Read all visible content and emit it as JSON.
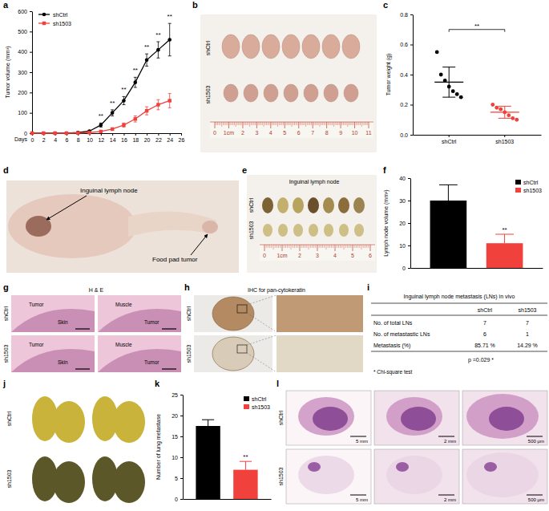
{
  "chart_data": [
    {
      "type": "line",
      "x": [
        0,
        2,
        4,
        6,
        8,
        10,
        12,
        14,
        16,
        18,
        20,
        22,
        24
      ],
      "series": [
        {
          "name": "shCtrl",
          "color": "#000000",
          "marker": "circle",
          "values": [
            0,
            0,
            0,
            0,
            3,
            10,
            40,
            100,
            160,
            250,
            360,
            410,
            460
          ],
          "errors": [
            0,
            0,
            0,
            0,
            2,
            4,
            10,
            15,
            20,
            25,
            30,
            40,
            80
          ]
        },
        {
          "name": "sh1503",
          "color": "#f0413c",
          "marker": "square",
          "values": [
            0,
            0,
            0,
            0,
            1,
            3,
            8,
            20,
            40,
            70,
            110,
            140,
            160
          ],
          "errors": [
            0,
            0,
            0,
            0,
            1,
            2,
            4,
            6,
            10,
            15,
            20,
            25,
            35
          ]
        }
      ],
      "xlim": [
        0,
        26
      ],
      "xticks": [
        0,
        2,
        4,
        6,
        8,
        10,
        12,
        14,
        16,
        18,
        20,
        22,
        24,
        26
      ],
      "ylim": [
        0,
        600
      ],
      "yticks": [
        0,
        100,
        200,
        300,
        400,
        500,
        600
      ],
      "x_label": "Days",
      "y_label": "Tumor volume (mm³)",
      "legend": "top-left",
      "annotations": [
        {
          "x": 12,
          "y": 75,
          "text": "**"
        },
        {
          "x": 14,
          "y": 140,
          "text": "**"
        },
        {
          "x": 16,
          "y": 205,
          "text": "**"
        },
        {
          "x": 18,
          "y": 300,
          "text": "**"
        },
        {
          "x": 20,
          "y": 415,
          "text": "**"
        },
        {
          "x": 22,
          "y": 475,
          "text": "**"
        },
        {
          "x": 24,
          "y": 565,
          "text": "**"
        }
      ]
    },
    {
      "type": "dot",
      "categories": [
        "shCtrl",
        "sh1503"
      ],
      "colors": [
        "#000000",
        "#f0413c"
      ],
      "points": [
        [
          0.55,
          0.4,
          0.36,
          0.32,
          0.29,
          0.27,
          0.25
        ],
        [
          0.2,
          0.18,
          0.17,
          0.15,
          0.13,
          0.11,
          0.1
        ]
      ],
      "means": [
        0.35,
        0.15
      ],
      "sd": [
        0.1,
        0.04
      ],
      "ylim": [
        0,
        0.8
      ],
      "yticks": [
        {
          "value": 0,
          "label": "0.0"
        },
        {
          "value": 0.2,
          "label": "0.2"
        },
        {
          "value": 0.4,
          "label": "0.4"
        },
        {
          "value": 0.6,
          "label": "0.6"
        },
        {
          "value": 0.8,
          "label": "0.8"
        }
      ],
      "y_label": "Tumor weight (g)",
      "annotations": [
        {
          "y": 0.7,
          "text": "**"
        }
      ]
    },
    {
      "type": "bar",
      "categories": [
        "shCtrl",
        "sh1503"
      ],
      "values": [
        30,
        11
      ],
      "errors": [
        7,
        4
      ],
      "colors": [
        "#000000",
        "#f0413c"
      ],
      "ylim": [
        0,
        40
      ],
      "yticks": [
        0,
        10,
        20,
        30,
        40
      ],
      "y_label": "Lymph node volume (mm³)",
      "legend": "top-right",
      "tick_labels": "y",
      "annotations": [
        {
          "category": "sh1503",
          "text": "**"
        }
      ]
    },
    {
      "type": "bar",
      "categories": [
        "shCtrl",
        "sh1503"
      ],
      "values": [
        17.5,
        7
      ],
      "errors": [
        1.5,
        2
      ],
      "colors": [
        "#000000",
        "#f0413c"
      ],
      "ylim": [
        0,
        25
      ],
      "yticks": [
        0,
        5,
        10,
        15,
        20,
        25
      ],
      "y_label": "Number of lung metastase",
      "legend": "top-right",
      "tick_labels": "y",
      "annotations": [
        {
          "category": "sh1503",
          "text": "**"
        }
      ]
    }
  ],
  "figure": {
    "panel_labels": [
      "a",
      "b",
      "c",
      "d",
      "e",
      "f",
      "g",
      "h",
      "i",
      "j",
      "k",
      "l"
    ],
    "b": {
      "rows": [
        "shCtrl",
        "sh1503"
      ],
      "ruler": [
        "0",
        "1cm",
        "2",
        "3",
        "4",
        "5",
        "6",
        "7",
        "8",
        "9",
        "10",
        "11"
      ]
    },
    "d": {
      "labels": [
        "Inguinal lymph node",
        "Food pad tumor"
      ]
    },
    "e": {
      "title": "Inguinal lymph node",
      "rows": [
        "shCtrl",
        "sh1503"
      ],
      "ruler": [
        "0",
        "1cm",
        "2",
        "3",
        "4",
        "5",
        "6"
      ]
    },
    "g": {
      "title": "H & E",
      "rows": [
        "shCtrl",
        "sh1503"
      ],
      "labels": [
        [
          "Tumor",
          "Skin"
        ],
        [
          "Muscle",
          "Tumor"
        ],
        [
          "Tumor",
          "Skin"
        ],
        [
          "Muscle",
          "Tumor"
        ]
      ]
    },
    "h": {
      "title": "IHC for pan-cytokeratin",
      "rows": [
        "shCtrl",
        "sh1503"
      ]
    },
    "i": {
      "title": "Inguinal lymph node metastasis (LNs) in vivo",
      "header": [
        null,
        "shCtrl",
        "sh1503"
      ],
      "rows": [
        [
          "No. of total LNs",
          "7",
          "7"
        ],
        [
          "No. of metastastic LNs",
          "6",
          "1"
        ],
        [
          "Metastasis (%)",
          "85.71 %",
          "14.29 %"
        ]
      ],
      "p_value": "p =0.029 *",
      "note": "* Chi-square test"
    },
    "j": {
      "rows": [
        "shCtrl",
        "sh1503"
      ]
    },
    "l": {
      "rows": [
        "shCtrl",
        "sh1503"
      ],
      "scale_bars": [
        [
          "5 mm",
          "2 mm",
          "500 μm"
        ],
        [
          "5 mm",
          "2 mm",
          "500 μm"
        ]
      ]
    }
  }
}
